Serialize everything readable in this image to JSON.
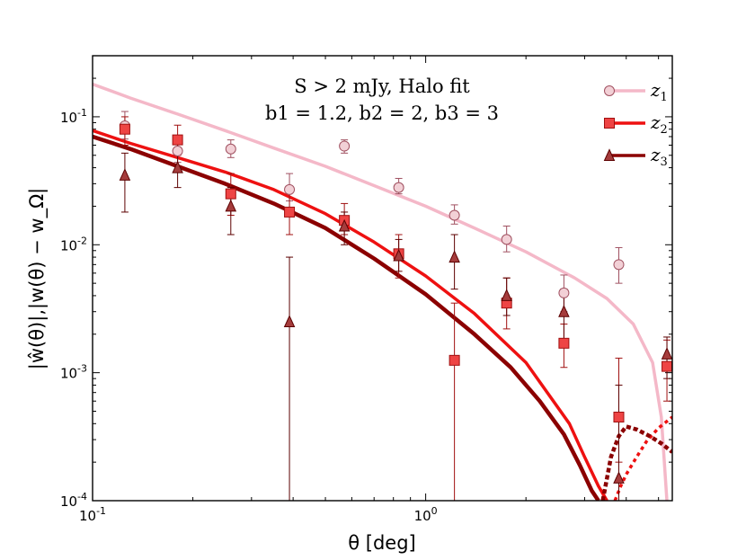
{
  "chart_data": {
    "type": "line",
    "xscale": "log",
    "yscale": "log",
    "xlim": [
      0.1,
      5.5
    ],
    "ylim": [
      0.0001,
      0.3
    ],
    "xlabel": "θ [deg]",
    "ylabel": "|ŵ(θ)|,|w(θ) − w_Ω|",
    "xticks": [
      {
        "value": 0.1,
        "mant": "10",
        "exp": "-1"
      },
      {
        "value": 1.0,
        "mant": "10",
        "exp": "0"
      }
    ],
    "yticks": [
      {
        "value": 0.0001,
        "mant": "10",
        "exp": "-4"
      },
      {
        "value": 0.001,
        "mant": "10",
        "exp": "-3"
      },
      {
        "value": 0.01,
        "mant": "10",
        "exp": "-2"
      },
      {
        "value": 0.1,
        "mant": "10",
        "exp": "-1"
      }
    ],
    "annotations": {
      "line1": "S > 2 mJy, Halo fit",
      "line2": "b1 = 1.2, b2 = 2, b3 = 3"
    },
    "series": [
      {
        "name": "z1",
        "label_base": "z",
        "label_sub": "1",
        "color": "#f4b8c8",
        "marker": "circle",
        "marker_fill": "#f2d0d6",
        "marker_edge": "#a05060",
        "model": {
          "x": [
            0.1,
            0.13,
            0.18,
            0.25,
            0.35,
            0.5,
            0.7,
            1.0,
            1.4,
            2.0,
            2.8,
            3.5,
            4.2,
            4.8,
            5.1,
            5.3
          ],
          "y": [
            0.18,
            0.14,
            0.105,
            0.078,
            0.057,
            0.041,
            0.029,
            0.02,
            0.0135,
            0.0088,
            0.0055,
            0.0038,
            0.0024,
            0.0012,
            0.00045,
            0.0001
          ]
        },
        "points": [
          {
            "x": 0.125,
            "y": 0.085,
            "lo": 0.067,
            "hi": 0.11
          },
          {
            "x": 0.18,
            "y": 0.054,
            "lo": 0.044,
            "hi": 0.066
          },
          {
            "x": 0.26,
            "y": 0.056,
            "lo": 0.048,
            "hi": 0.066
          },
          {
            "x": 0.39,
            "y": 0.027,
            "lo": 0.022,
            "hi": 0.036
          },
          {
            "x": 0.57,
            "y": 0.059,
            "lo": 0.052,
            "hi": 0.066
          },
          {
            "x": 0.83,
            "y": 0.028,
            "lo": 0.025,
            "hi": 0.033
          },
          {
            "x": 1.22,
            "y": 0.017,
            "lo": 0.0145,
            "hi": 0.0205
          },
          {
            "x": 1.75,
            "y": 0.011,
            "lo": 0.0088,
            "hi": 0.014
          },
          {
            "x": 2.6,
            "y": 0.0042,
            "lo": 0.003,
            "hi": 0.0058
          },
          {
            "x": 3.8,
            "y": 0.007,
            "lo": 0.005,
            "hi": 0.0095
          }
        ]
      },
      {
        "name": "z2",
        "label_base": "z",
        "label_sub": "2",
        "color": "#ee1111",
        "marker": "square",
        "marker_fill": "#ee4444",
        "marker_edge": "#a01010",
        "model": {
          "x": [
            0.1,
            0.13,
            0.18,
            0.25,
            0.35,
            0.5,
            0.7,
            1.0,
            1.4,
            2.0,
            2.7,
            3.0,
            3.3,
            3.5
          ],
          "y": [
            0.078,
            0.062,
            0.048,
            0.037,
            0.027,
            0.0175,
            0.0105,
            0.0057,
            0.0029,
            0.0012,
            0.0004,
            0.00022,
            0.00013,
            0.0001
          ]
        },
        "tail": {
          "x": [
            3.7,
            3.85,
            4.0,
            4.3,
            4.6,
            5.0,
            5.5
          ],
          "y": [
            0.0001,
            0.00013,
            0.00016,
            0.00022,
            0.00029,
            0.00037,
            0.00045
          ]
        },
        "points": [
          {
            "x": 0.125,
            "y": 0.08,
            "lo": 0.06,
            "hi": 0.1
          },
          {
            "x": 0.18,
            "y": 0.066,
            "lo": 0.05,
            "hi": 0.086
          },
          {
            "x": 0.26,
            "y": 0.025,
            "lo": 0.017,
            "hi": 0.036
          },
          {
            "x": 0.39,
            "y": 0.018,
            "lo": 0.012,
            "hi": 0.026
          },
          {
            "x": 0.57,
            "y": 0.0155,
            "lo": 0.012,
            "hi": 0.021
          },
          {
            "x": 0.83,
            "y": 0.0085,
            "lo": 0.0055,
            "hi": 0.012
          },
          {
            "x": 1.22,
            "y": 0.00125,
            "lo": 0.0001,
            "hi": 0.0035
          },
          {
            "x": 1.75,
            "y": 0.0035,
            "lo": 0.0022,
            "hi": 0.0055
          },
          {
            "x": 2.6,
            "y": 0.0017,
            "lo": 0.0011,
            "hi": 0.0024
          },
          {
            "x": 3.8,
            "y": 0.00045,
            "lo": 0.0002,
            "hi": 0.0013
          },
          {
            "x": 5.3,
            "y": 0.00112,
            "lo": 0.0006,
            "hi": 0.0018
          }
        ]
      },
      {
        "name": "z3",
        "label_base": "z",
        "label_sub": "3",
        "color": "#8b0000",
        "marker": "triangle",
        "marker_fill": "#a53c3c",
        "marker_edge": "#5c0000",
        "model": {
          "x": [
            0.1,
            0.13,
            0.18,
            0.25,
            0.35,
            0.5,
            0.7,
            1.0,
            1.4,
            1.8,
            2.2,
            2.6,
            2.9,
            3.15,
            3.3
          ],
          "y": [
            0.07,
            0.056,
            0.041,
            0.03,
            0.021,
            0.0135,
            0.0078,
            0.0041,
            0.002,
            0.0011,
            0.0006,
            0.00033,
            0.00019,
            0.00012,
            0.0001
          ]
        },
        "tail": {
          "x": [
            3.4,
            3.6,
            3.8,
            4.0,
            4.3,
            4.7,
            5.1,
            5.5
          ],
          "y": [
            0.0001,
            0.00022,
            0.00032,
            0.00038,
            0.00036,
            0.00032,
            0.00028,
            0.00024
          ]
        },
        "points": [
          {
            "x": 0.125,
            "y": 0.035,
            "lo": 0.018,
            "hi": 0.052
          },
          {
            "x": 0.18,
            "y": 0.04,
            "lo": 0.028,
            "hi": 0.055
          },
          {
            "x": 0.26,
            "y": 0.02,
            "lo": 0.012,
            "hi": 0.028
          },
          {
            "x": 0.39,
            "y": 0.0025,
            "lo": 0.0001,
            "hi": 0.008
          },
          {
            "x": 0.57,
            "y": 0.014,
            "lo": 0.01,
            "hi": 0.018
          },
          {
            "x": 0.83,
            "y": 0.0082,
            "lo": 0.0062,
            "hi": 0.011
          },
          {
            "x": 1.22,
            "y": 0.008,
            "lo": 0.0045,
            "hi": 0.012
          },
          {
            "x": 1.75,
            "y": 0.004,
            "lo": 0.0028,
            "hi": 0.0055
          },
          {
            "x": 2.6,
            "y": 0.003,
            "lo": 0.0018,
            "hi": 0.0045
          },
          {
            "x": 3.8,
            "y": 0.00015,
            "lo": 0.0001,
            "hi": 0.0008
          },
          {
            "x": 5.3,
            "y": 0.0014,
            "lo": 0.0009,
            "hi": 0.0019
          }
        ]
      }
    ]
  }
}
